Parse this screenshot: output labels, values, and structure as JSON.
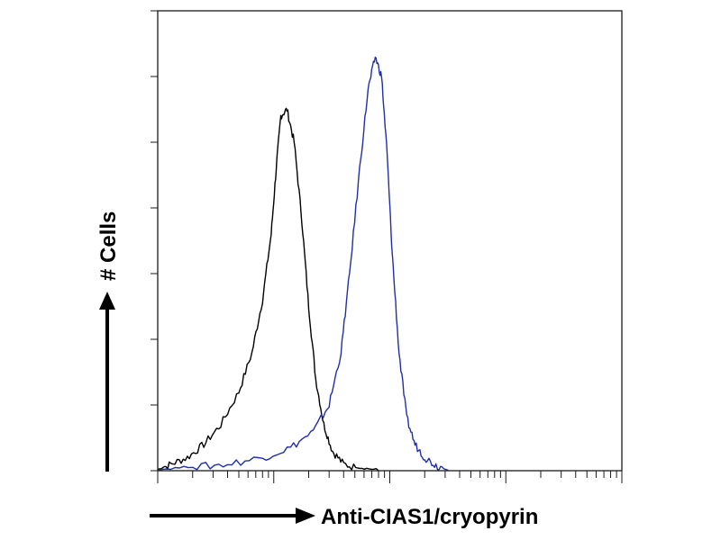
{
  "chart_data": {
    "type": "line",
    "title": "",
    "xlabel": "Anti-CIAS1/cryopyrin",
    "ylabel": "# Cells",
    "xscale": "log",
    "xlim": [
      1,
      10000
    ],
    "ylim": [
      0,
      7
    ],
    "grid": false,
    "legend": "none",
    "series": [
      {
        "color": "#000000",
        "x": [
          1,
          1.3,
          1.8,
          2.5,
          3.5,
          5,
          6.5,
          8,
          9.5,
          10.5,
          11.5,
          13,
          15,
          17.5,
          20,
          23,
          27,
          32,
          40,
          55,
          80
        ],
        "y": [
          0.0,
          0.1,
          0.2,
          0.4,
          0.7,
          1.2,
          1.8,
          2.6,
          3.6,
          4.6,
          5.4,
          5.5,
          5.0,
          3.8,
          2.5,
          1.4,
          0.7,
          0.3,
          0.1,
          0.03,
          0.0
        ]
      },
      {
        "color": "#1f2fa8",
        "x": [
          1,
          2,
          4,
          8,
          14,
          22,
          30,
          38,
          45,
          55,
          65,
          75,
          85,
          95,
          105,
          120,
          140,
          165,
          200,
          250,
          320
        ],
        "y": [
          0.0,
          0.05,
          0.1,
          0.2,
          0.35,
          0.6,
          1.0,
          1.8,
          3.0,
          4.6,
          5.8,
          6.3,
          6.0,
          4.8,
          3.3,
          1.8,
          0.8,
          0.4,
          0.2,
          0.08,
          0.0
        ]
      }
    ]
  }
}
